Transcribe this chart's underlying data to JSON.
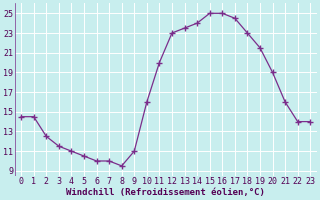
{
  "x": [
    0,
    1,
    2,
    3,
    4,
    5,
    6,
    7,
    8,
    9,
    10,
    11,
    12,
    13,
    14,
    15,
    16,
    17,
    18,
    19,
    20,
    21,
    22,
    23
  ],
  "y": [
    14.5,
    14.5,
    12.5,
    11.5,
    11.0,
    10.5,
    10.0,
    10.0,
    9.5,
    11.0,
    16.0,
    20.0,
    23.0,
    23.5,
    24.0,
    25.0,
    25.0,
    24.5,
    23.0,
    21.5,
    19.0,
    16.0,
    14.0,
    14.0
  ],
  "line_color": "#7b2d8b",
  "marker": "+",
  "marker_size": 4,
  "lw": 0.9,
  "bg_color": "#c8eeee",
  "grid_color": "#b0d8d8",
  "xlabel": "Windchill (Refroidissement éolien,°C)",
  "xlabel_fontsize": 6.5,
  "tick_fontsize": 6.0,
  "ylim": [
    8.5,
    26.0
  ],
  "yticks": [
    9,
    11,
    13,
    15,
    17,
    19,
    21,
    23,
    25
  ],
  "xlim": [
    -0.5,
    23.5
  ],
  "xticks": [
    0,
    1,
    2,
    3,
    4,
    5,
    6,
    7,
    8,
    9,
    10,
    11,
    12,
    13,
    14,
    15,
    16,
    17,
    18,
    19,
    20,
    21,
    22,
    23
  ]
}
